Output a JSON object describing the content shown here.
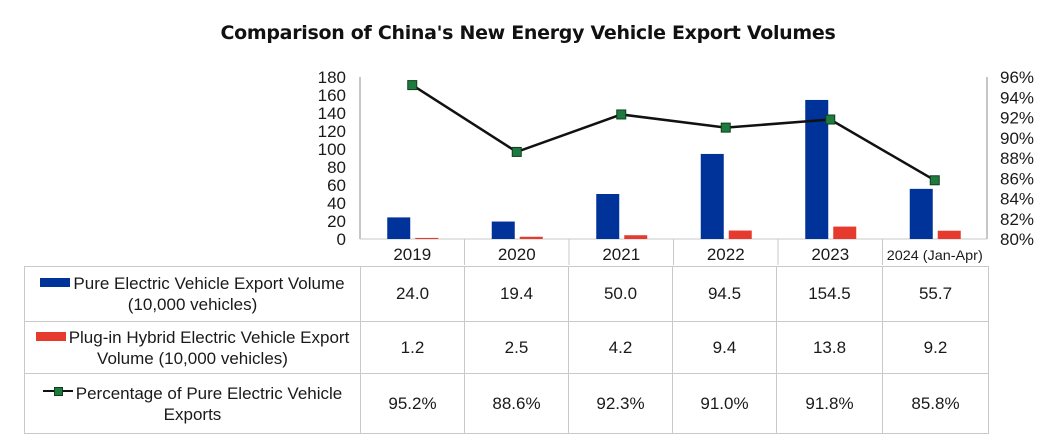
{
  "chart_data": {
    "type": "bar",
    "title": "Comparison of China's New Energy Vehicle Export Volumes",
    "categories": [
      "2019",
      "2020",
      "2021",
      "2022",
      "2023",
      "2024 (Jan-Apr)"
    ],
    "series": [
      {
        "name": "Pure Electric Vehicle Export Volume (10,000 vehicles)",
        "type": "bar",
        "axis": "left",
        "color": "#003399",
        "values": [
          24.0,
          19.4,
          50.0,
          94.5,
          154.5,
          55.7
        ],
        "display": [
          "24.0",
          "19.4",
          "50.0",
          "94.5",
          "154.5",
          "55.7"
        ]
      },
      {
        "name": "Plug-in Hybrid Electric Vehicle Export Volume (10,000 vehicles)",
        "type": "bar",
        "axis": "left",
        "color": "#e63a2e",
        "values": [
          1.2,
          2.5,
          4.2,
          9.4,
          13.8,
          9.2
        ],
        "display": [
          "1.2",
          "2.5",
          "4.2",
          "9.4",
          "13.8",
          "9.2"
        ]
      },
      {
        "name": "Percentage of Pure Electric Vehicle Exports",
        "type": "line",
        "axis": "right",
        "color": "#111111",
        "marker_color": "#1f7a3f",
        "values": [
          95.2,
          88.6,
          92.3,
          91.0,
          91.8,
          85.8
        ],
        "display": [
          "95.2%",
          "88.6%",
          "92.3%",
          "91.0%",
          "91.8%",
          "85.8%"
        ]
      }
    ],
    "left_axis": {
      "min": 0,
      "max": 180,
      "step": 20,
      "ticks": [
        "0",
        "20",
        "40",
        "60",
        "80",
        "100",
        "120",
        "140",
        "160",
        "180"
      ]
    },
    "right_axis": {
      "min": 80,
      "max": 96,
      "step": 2,
      "ticks": [
        "80%",
        "82%",
        "84%",
        "86%",
        "88%",
        "90%",
        "92%",
        "94%",
        "96%"
      ]
    },
    "grid": false,
    "legend": "data-table"
  },
  "table": {
    "rows": [
      {
        "label_line1": "Pure Electric Vehicle Export Volume",
        "label_line2": "(10,000 vehicles)",
        "key": "bar-blue"
      },
      {
        "label_line1": "Plug-in Hybrid Electric Vehicle Export",
        "label_line2": "Volume (10,000 vehicles)",
        "key": "bar-red"
      },
      {
        "label_line1": "Percentage of Pure Electric Vehicle",
        "label_line2": "Exports",
        "key": "line-green"
      }
    ]
  }
}
